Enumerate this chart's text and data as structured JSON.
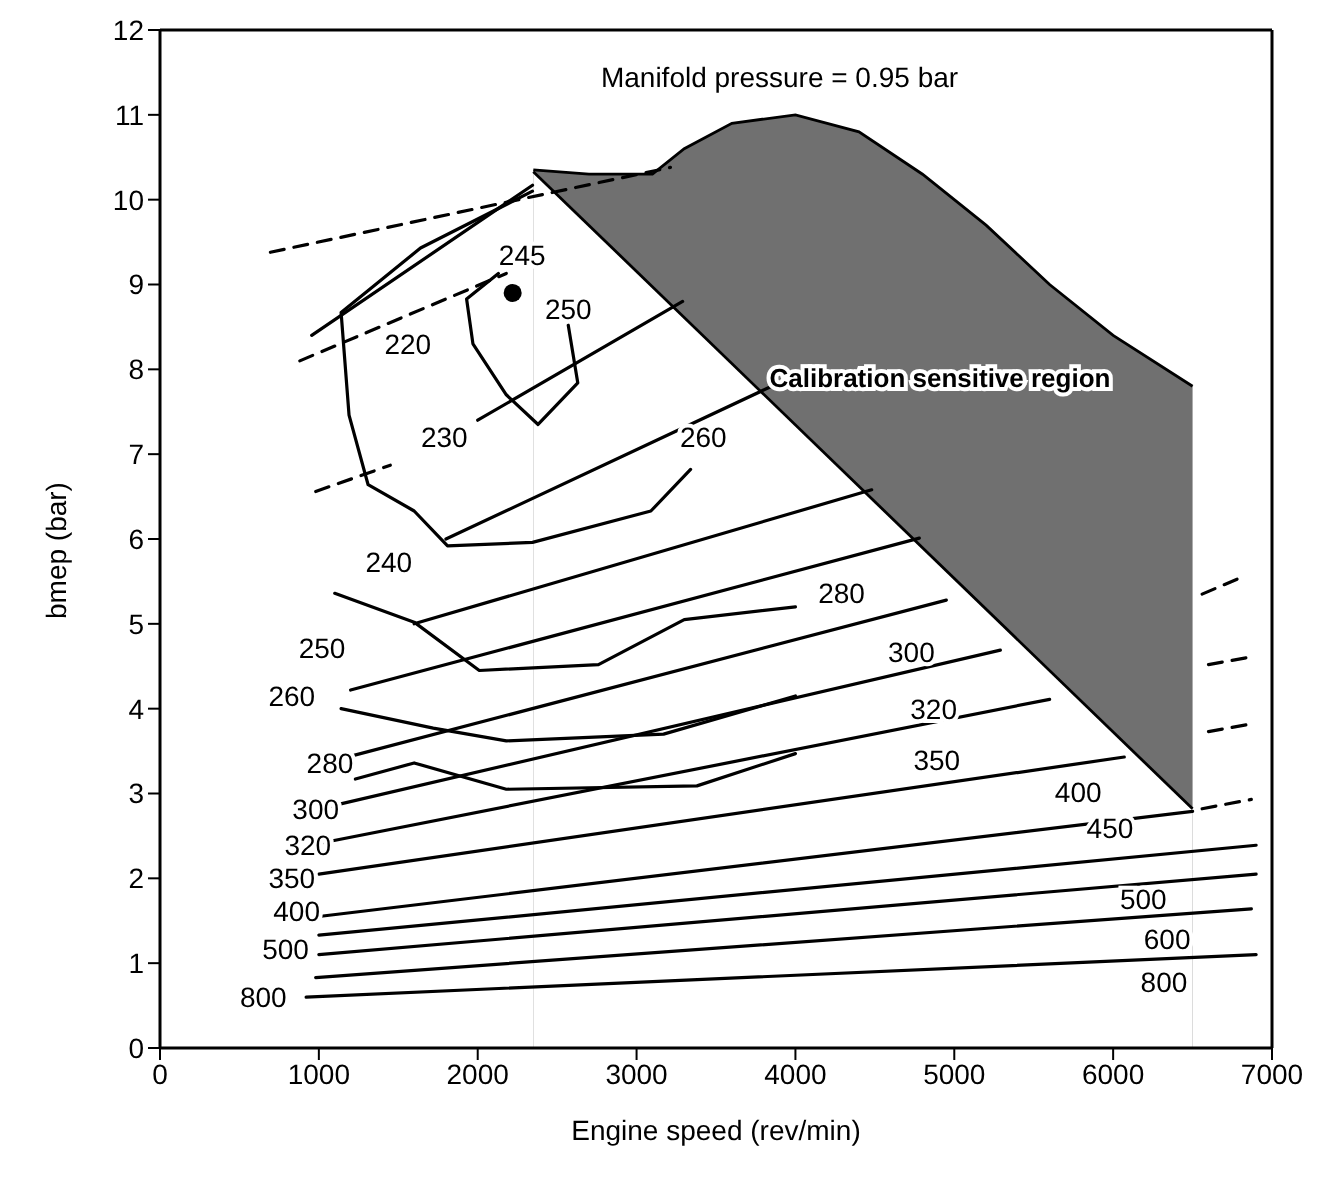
{
  "chart_data": {
    "type": "line",
    "xlabel": "Engine speed (rev/min)",
    "ylabel": "bmep (bar)",
    "xlim": [
      0,
      7000
    ],
    "xticks": [
      0,
      1000,
      2000,
      3000,
      4000,
      5000,
      6000,
      7000
    ],
    "ylim": [
      0,
      12
    ],
    "yticks": [
      0,
      1,
      2,
      3,
      4,
      5,
      6,
      7,
      8,
      9,
      10,
      11,
      12
    ],
    "grid": false,
    "marker": "none",
    "series": [
      {
        "type": "area",
        "color": "#707070",
        "x": [
          2350,
          2700,
          3100,
          3300,
          3600,
          4000,
          4400,
          4800,
          5200,
          5600,
          6000,
          6500
        ],
        "values": [
          10.35,
          10.3,
          10.3,
          10.6,
          10.9,
          11.0,
          10.8,
          10.3,
          9.7,
          9.0,
          8.4,
          7.8
        ]
      },
      {
        "type": "area",
        "color": "#ffffff",
        "x": [
          2350,
          6500
        ],
        "values": [
          10.33,
          2.82
        ]
      },
      {
        "color": "#000000",
        "line_style": "solid",
        "x": [
          920,
          6900
        ],
        "values": [
          0.6,
          1.1
        ]
      },
      {
        "color": "#000000",
        "line_style": "solid",
        "x": [
          980,
          6870
        ],
        "values": [
          0.83,
          1.64
        ]
      },
      {
        "color": "#000000",
        "line_style": "solid",
        "x": [
          1000,
          6900
        ],
        "values": [
          1.1,
          2.05
        ]
      },
      {
        "color": "#000000",
        "line_style": "solid",
        "x": [
          1000,
          6900
        ],
        "values": [
          1.33,
          2.39
        ]
      },
      {
        "color": "#000000",
        "line_style": "solid",
        "x": [
          1000,
          6500
        ],
        "values": [
          1.55,
          2.79
        ]
      },
      {
        "color": "#000000",
        "line_style": "solid",
        "x": [
          1000,
          6070
        ],
        "values": [
          2.05,
          3.43
        ]
      },
      {
        "color": "#000000",
        "line_style": "solid",
        "x": [
          1000,
          5600
        ],
        "values": [
          2.41,
          4.11
        ]
      },
      {
        "color": "#000000",
        "line_style": "solid",
        "x": [
          1050,
          5290
        ],
        "values": [
          2.84,
          4.69
        ]
      },
      {
        "color": "#000000",
        "line_style": "solid",
        "x": [
          1100,
          4950
        ],
        "values": [
          3.39,
          5.28
        ]
      },
      {
        "color": "#000000",
        "line_style": "solid",
        "x": [
          1200,
          4780
        ],
        "values": [
          4.22,
          6.01
        ]
      },
      {
        "color": "#000000",
        "line_style": "solid",
        "x": [
          1600,
          4480
        ],
        "values": [
          5.0,
          6.58
        ]
      },
      {
        "color": "#000000",
        "line_style": "solid",
        "x": [
          1800,
          3850
        ],
        "values": [
          6.0,
          7.8
        ]
      },
      {
        "color": "#000000",
        "line_style": "solid",
        "x": [
          2000,
          3290
        ],
        "values": [
          7.4,
          8.8
        ]
      },
      {
        "color": "#000000",
        "line_style": "solid",
        "x": [
          955,
          2345
        ],
        "values": [
          8.4,
          10.17
        ]
      },
      {
        "color": "#000000",
        "line_style": "dashed",
        "x": [
          695,
          3213
        ],
        "values": [
          9.38,
          10.38
        ]
      },
      {
        "color": "#000000",
        "line_style": "dashed",
        "x": [
          880,
          2180
        ],
        "values": [
          8.1,
          9.13
        ]
      },
      {
        "color": "#000000",
        "line_style": "dashed",
        "x": [
          980,
          1450
        ],
        "values": [
          6.56,
          6.87
        ]
      },
      {
        "color": "#000000",
        "line_style": "dashed",
        "x": [
          6560,
          6870
        ],
        "values": [
          2.82,
          2.93
        ]
      },
      {
        "color": "#000000",
        "line_style": "dashed",
        "x": [
          6600,
          6840
        ],
        "values": [
          3.73,
          3.81
        ]
      },
      {
        "color": "#000000",
        "line_style": "dashed",
        "x": [
          6600,
          6840
        ],
        "values": [
          4.52,
          4.6
        ]
      },
      {
        "color": "#000000",
        "line_style": "dashed",
        "x": [
          6560,
          6810
        ],
        "values": [
          5.35,
          5.55
        ]
      },
      {
        "color": "#000000",
        "line_style": "solid",
        "x": [
          2345,
          1640,
          1140,
          1190,
          1310,
          1600,
          1810,
          2345,
          3090,
          3340
        ],
        "values": [
          10.1,
          9.43,
          8.67,
          7.46,
          6.64,
          6.33,
          5.92,
          5.96,
          6.33,
          6.82
        ]
      },
      {
        "color": "#000000",
        "line_style": "solid",
        "x": [
          2130,
          1930,
          1970,
          2180,
          2380,
          2630,
          2570
        ],
        "values": [
          9.13,
          8.83,
          8.3,
          7.7,
          7.35,
          7.84,
          8.52
        ]
      },
      {
        "color": "#000000",
        "line_style": "solid",
        "x": [
          1100,
          1600,
          2010,
          2760,
          3300,
          4000
        ],
        "values": [
          5.36,
          5.02,
          4.45,
          4.52,
          5.05,
          5.2
        ]
      },
      {
        "color": "#000000",
        "line_style": "solid",
        "x": [
          1140,
          1720,
          2180,
          3170,
          4000
        ],
        "values": [
          4.0,
          3.77,
          3.62,
          3.7,
          4.15
        ]
      },
      {
        "color": "#000000",
        "line_style": "solid",
        "x": [
          1230,
          1600,
          2180,
          3380,
          4000
        ],
        "values": [
          3.17,
          3.36,
          3.05,
          3.09,
          3.47
        ]
      },
      {
        "type": "scatter",
        "color": "#000000",
        "marker": "circle",
        "x": [
          2220
        ],
        "values": [
          8.9
        ]
      }
    ],
    "annotations": [
      "Manifold pressure = 0.95 bar",
      "Calibration sensitive region",
      "220",
      "245",
      "250",
      "230",
      "260",
      "240",
      "250",
      "260",
      "280",
      "300",
      "320",
      "350",
      "400",
      "500",
      "800",
      "280",
      "300",
      "320",
      "350",
      "400",
      "450",
      "500",
      "600",
      "800"
    ]
  }
}
